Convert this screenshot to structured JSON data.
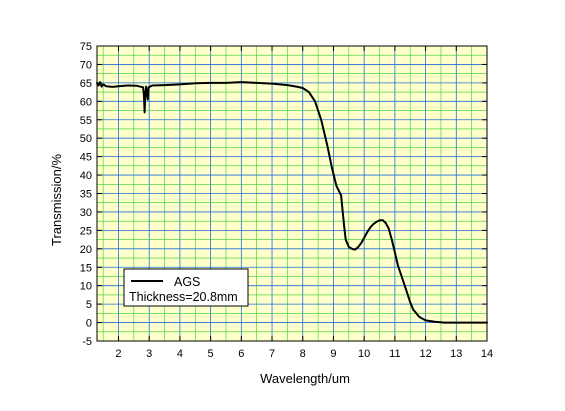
{
  "chart_data": {
    "type": "line",
    "title": "",
    "xlabel": "Wavelength/um",
    "ylabel": "Transmission/%",
    "xlim": [
      1.3,
      14
    ],
    "ylim": [
      -5,
      75
    ],
    "x_ticks": [
      2,
      3,
      4,
      5,
      6,
      7,
      8,
      9,
      10,
      11,
      12,
      13,
      14
    ],
    "y_ticks": [
      -5,
      0,
      5,
      10,
      15,
      20,
      25,
      30,
      35,
      40,
      45,
      50,
      55,
      60,
      65,
      70,
      75
    ],
    "grid": true,
    "grid_color": "#33cc33",
    "plot_background": "#ffffcc",
    "legend_position": "bottom-left",
    "legend": {
      "series_label": "AGS",
      "note": "Thickness=20.8mm"
    },
    "series": [
      {
        "name": "AGS",
        "color": "#000000",
        "points": [
          [
            1.3,
            65.0
          ],
          [
            1.35,
            64.3
          ],
          [
            1.4,
            65.2
          ],
          [
            1.45,
            64.0
          ],
          [
            1.5,
            64.6
          ],
          [
            1.6,
            64.1
          ],
          [
            1.8,
            63.9
          ],
          [
            2.0,
            64.1
          ],
          [
            2.3,
            64.3
          ],
          [
            2.6,
            64.2
          ],
          [
            2.8,
            63.8
          ],
          [
            2.83,
            61.5
          ],
          [
            2.85,
            57.0
          ],
          [
            2.87,
            61.5
          ],
          [
            2.9,
            64.0
          ],
          [
            2.95,
            60.5
          ],
          [
            2.98,
            63.8
          ],
          [
            3.1,
            64.3
          ],
          [
            3.5,
            64.4
          ],
          [
            4.0,
            64.6
          ],
          [
            4.5,
            64.9
          ],
          [
            5.0,
            65.0
          ],
          [
            5.5,
            65.0
          ],
          [
            6.0,
            65.2
          ],
          [
            6.5,
            65.0
          ],
          [
            7.0,
            64.8
          ],
          [
            7.5,
            64.4
          ],
          [
            7.8,
            64.0
          ],
          [
            8.0,
            63.6
          ],
          [
            8.2,
            62.5
          ],
          [
            8.4,
            60.0
          ],
          [
            8.6,
            55.0
          ],
          [
            8.8,
            48.0
          ],
          [
            8.95,
            42.0
          ],
          [
            9.1,
            37.0
          ],
          [
            9.25,
            34.5
          ],
          [
            9.3,
            30.0
          ],
          [
            9.35,
            26.0
          ],
          [
            9.4,
            22.5
          ],
          [
            9.45,
            21.5
          ],
          [
            9.5,
            20.5
          ],
          [
            9.6,
            20.0
          ],
          [
            9.7,
            19.8
          ],
          [
            9.8,
            20.4
          ],
          [
            9.9,
            21.5
          ],
          [
            10.0,
            23.0
          ],
          [
            10.1,
            24.5
          ],
          [
            10.2,
            25.8
          ],
          [
            10.3,
            26.7
          ],
          [
            10.4,
            27.3
          ],
          [
            10.5,
            27.7
          ],
          [
            10.6,
            27.8
          ],
          [
            10.7,
            27.0
          ],
          [
            10.8,
            25.5
          ],
          [
            10.9,
            22.5
          ],
          [
            11.0,
            19.0
          ],
          [
            11.1,
            15.5
          ],
          [
            11.2,
            13.0
          ],
          [
            11.3,
            10.5
          ],
          [
            11.4,
            8.0
          ],
          [
            11.5,
            5.5
          ],
          [
            11.6,
            3.5
          ],
          [
            11.8,
            1.5
          ],
          [
            12.0,
            0.6
          ],
          [
            12.3,
            0.2
          ],
          [
            12.6,
            0.0
          ],
          [
            13.0,
            0.0
          ],
          [
            14.0,
            0.0
          ]
        ]
      }
    ]
  }
}
